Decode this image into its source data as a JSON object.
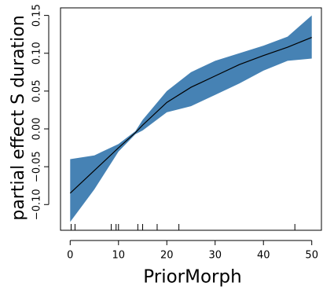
{
  "chart_data": {
    "type": "line",
    "x_label": "PriorMorph",
    "y_label": "partial effect S duration",
    "x": [
      0,
      5,
      10,
      13.5,
      15,
      20,
      25,
      30,
      35,
      40,
      45,
      50
    ],
    "series": [
      {
        "name": "fit",
        "color": "#000000",
        "values": [
          -0.085,
          -0.055,
          -0.025,
          -0.005,
          0.005,
          0.035,
          0.055,
          0.07,
          0.085,
          0.097,
          0.108,
          0.121
        ]
      },
      {
        "name": "upper",
        "color": "#4682b4",
        "values": [
          -0.04,
          -0.035,
          -0.02,
          -0.003,
          0.012,
          0.05,
          0.075,
          0.09,
          0.1,
          0.11,
          0.122,
          0.15
        ]
      },
      {
        "name": "lower",
        "color": "#4682b4",
        "values": [
          -0.123,
          -0.08,
          -0.03,
          -0.007,
          -0.002,
          0.022,
          0.03,
          0.045,
          0.06,
          0.077,
          0.09,
          0.093
        ]
      }
    ],
    "rug": [
      0.2,
      1,
      8.5,
      9.5,
      10,
      14,
      15,
      18,
      22.5,
      46.5
    ],
    "xlim": [
      -2,
      52
    ],
    "ylim": [
      -0.134,
      0.16
    ],
    "xticks": [
      0,
      10,
      20,
      30,
      40,
      50
    ],
    "yticks": [
      {
        "value": -0.1,
        "label": "−0.10"
      },
      {
        "value": -0.05,
        "label": "−0.05"
      },
      {
        "value": 0,
        "label": "0.00"
      },
      {
        "value": 0.05,
        "label": "0.05"
      },
      {
        "value": 0.1,
        "label": "0.10"
      },
      {
        "value": 0.15,
        "label": "0.15"
      }
    ]
  }
}
